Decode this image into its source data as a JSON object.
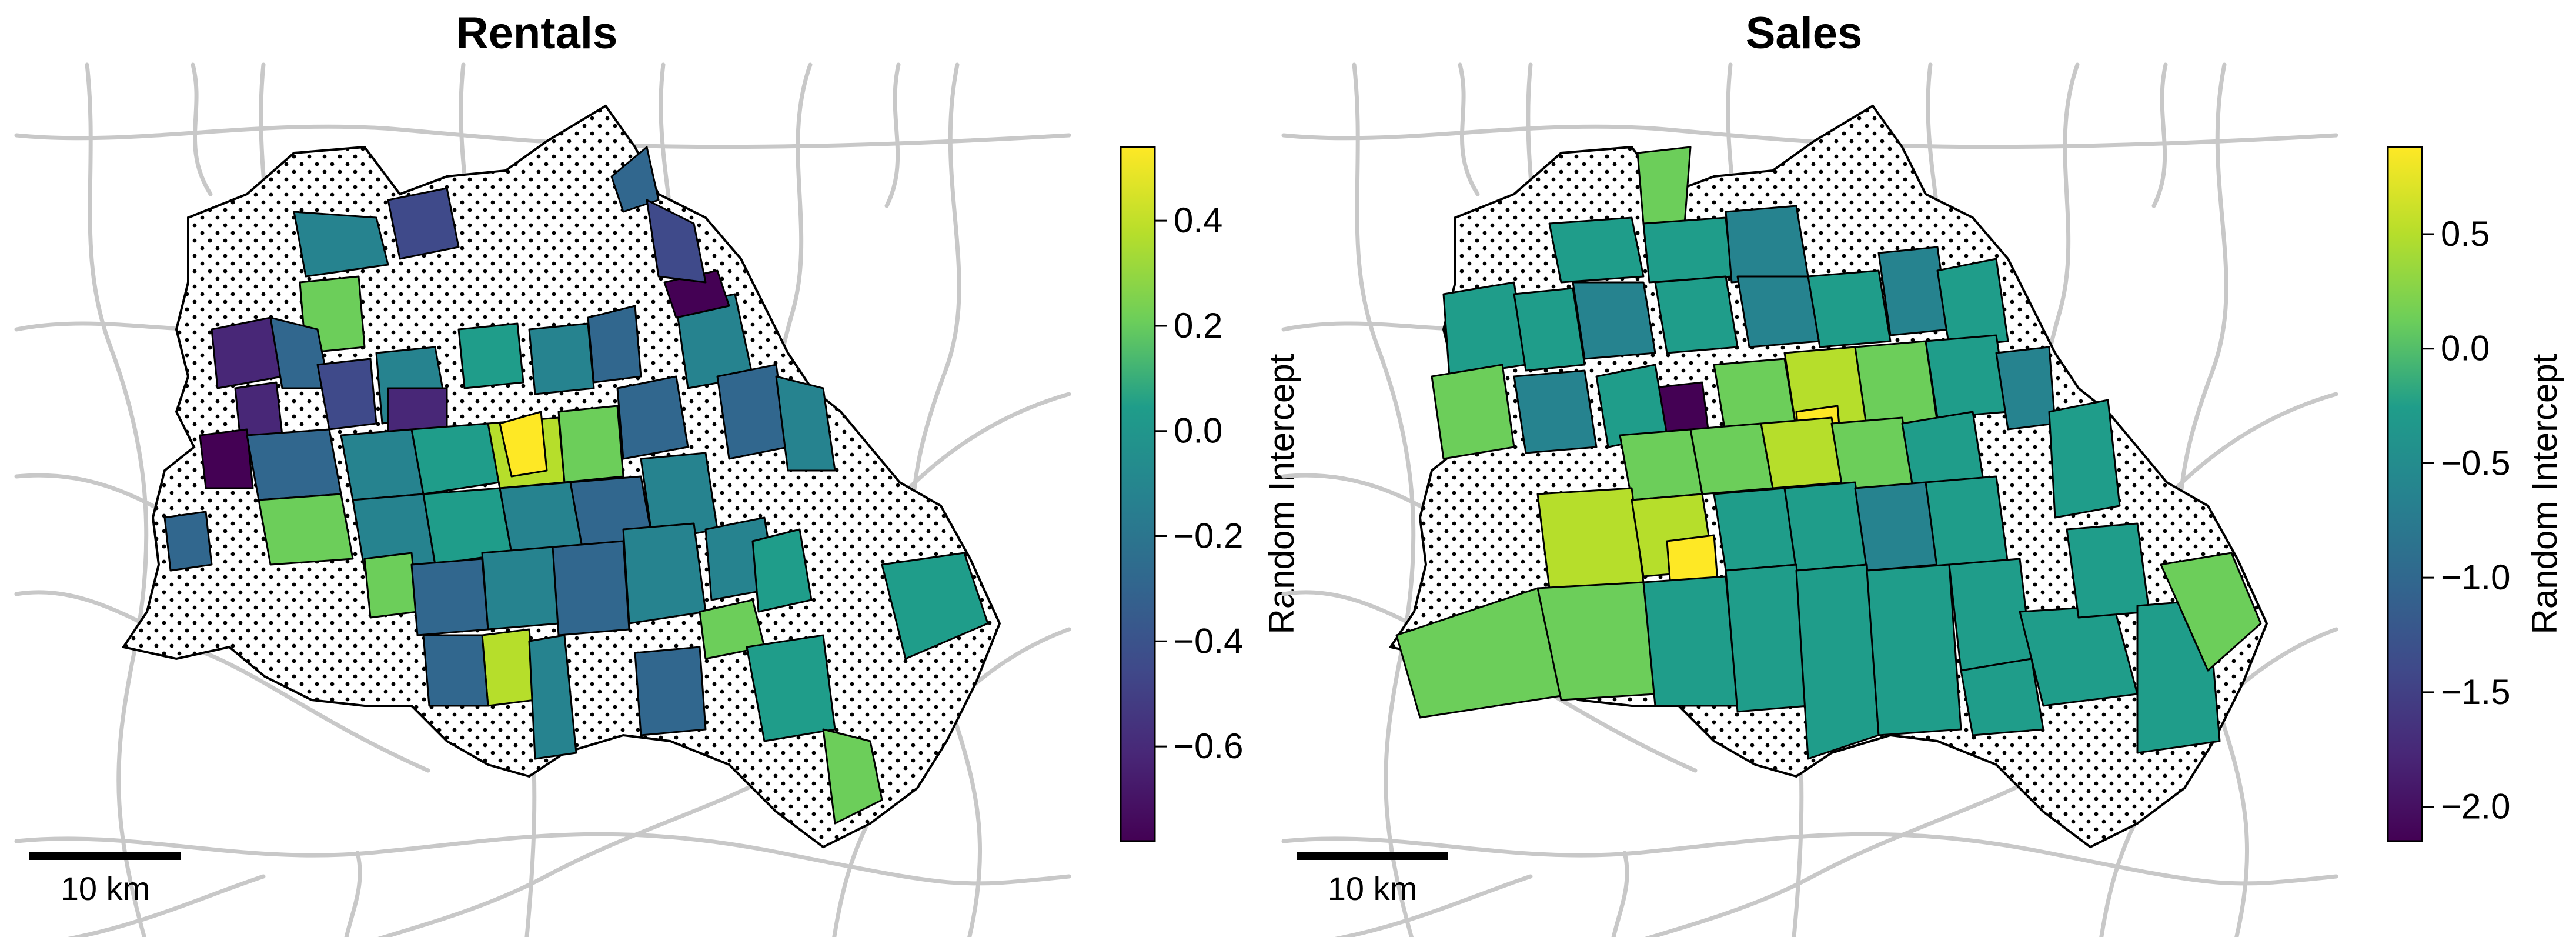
{
  "panels": [
    {
      "id": "rentals",
      "title": "Rentals",
      "scalebar_label": "10 km",
      "colorbar": {
        "label": "Random Intercept",
        "min": -0.78,
        "max": 0.54,
        "ticks": [
          {
            "value": 0.4,
            "label": "0.4"
          },
          {
            "value": 0.2,
            "label": "0.2"
          },
          {
            "value": 0.0,
            "label": "0.0"
          },
          {
            "value": -0.2,
            "label": "−0.2"
          },
          {
            "value": -0.4,
            "label": "−0.4"
          },
          {
            "value": -0.6,
            "label": "−0.6"
          }
        ]
      }
    },
    {
      "id": "sales",
      "title": "Sales",
      "scalebar_label": "10 km",
      "colorbar": {
        "label": "Random Intercept",
        "min": -2.15,
        "max": 0.88,
        "ticks": [
          {
            "value": 0.5,
            "label": "0.5"
          },
          {
            "value": 0.0,
            "label": "0.0"
          },
          {
            "value": -0.5,
            "label": "−0.5"
          },
          {
            "value": -1.0,
            "label": "−1.0"
          },
          {
            "value": -1.5,
            "label": "−1.5"
          },
          {
            "value": -2.0,
            "label": "−2.0"
          }
        ]
      }
    }
  ],
  "colors": {
    "roads": "#c8c8c8",
    "boundary": "#000000",
    "viridis": [
      "#440154",
      "#482777",
      "#3f4a8a",
      "#31678e",
      "#26838f",
      "#1f9d8a",
      "#6cce5a",
      "#b6de2b",
      "#fee825"
    ]
  }
}
